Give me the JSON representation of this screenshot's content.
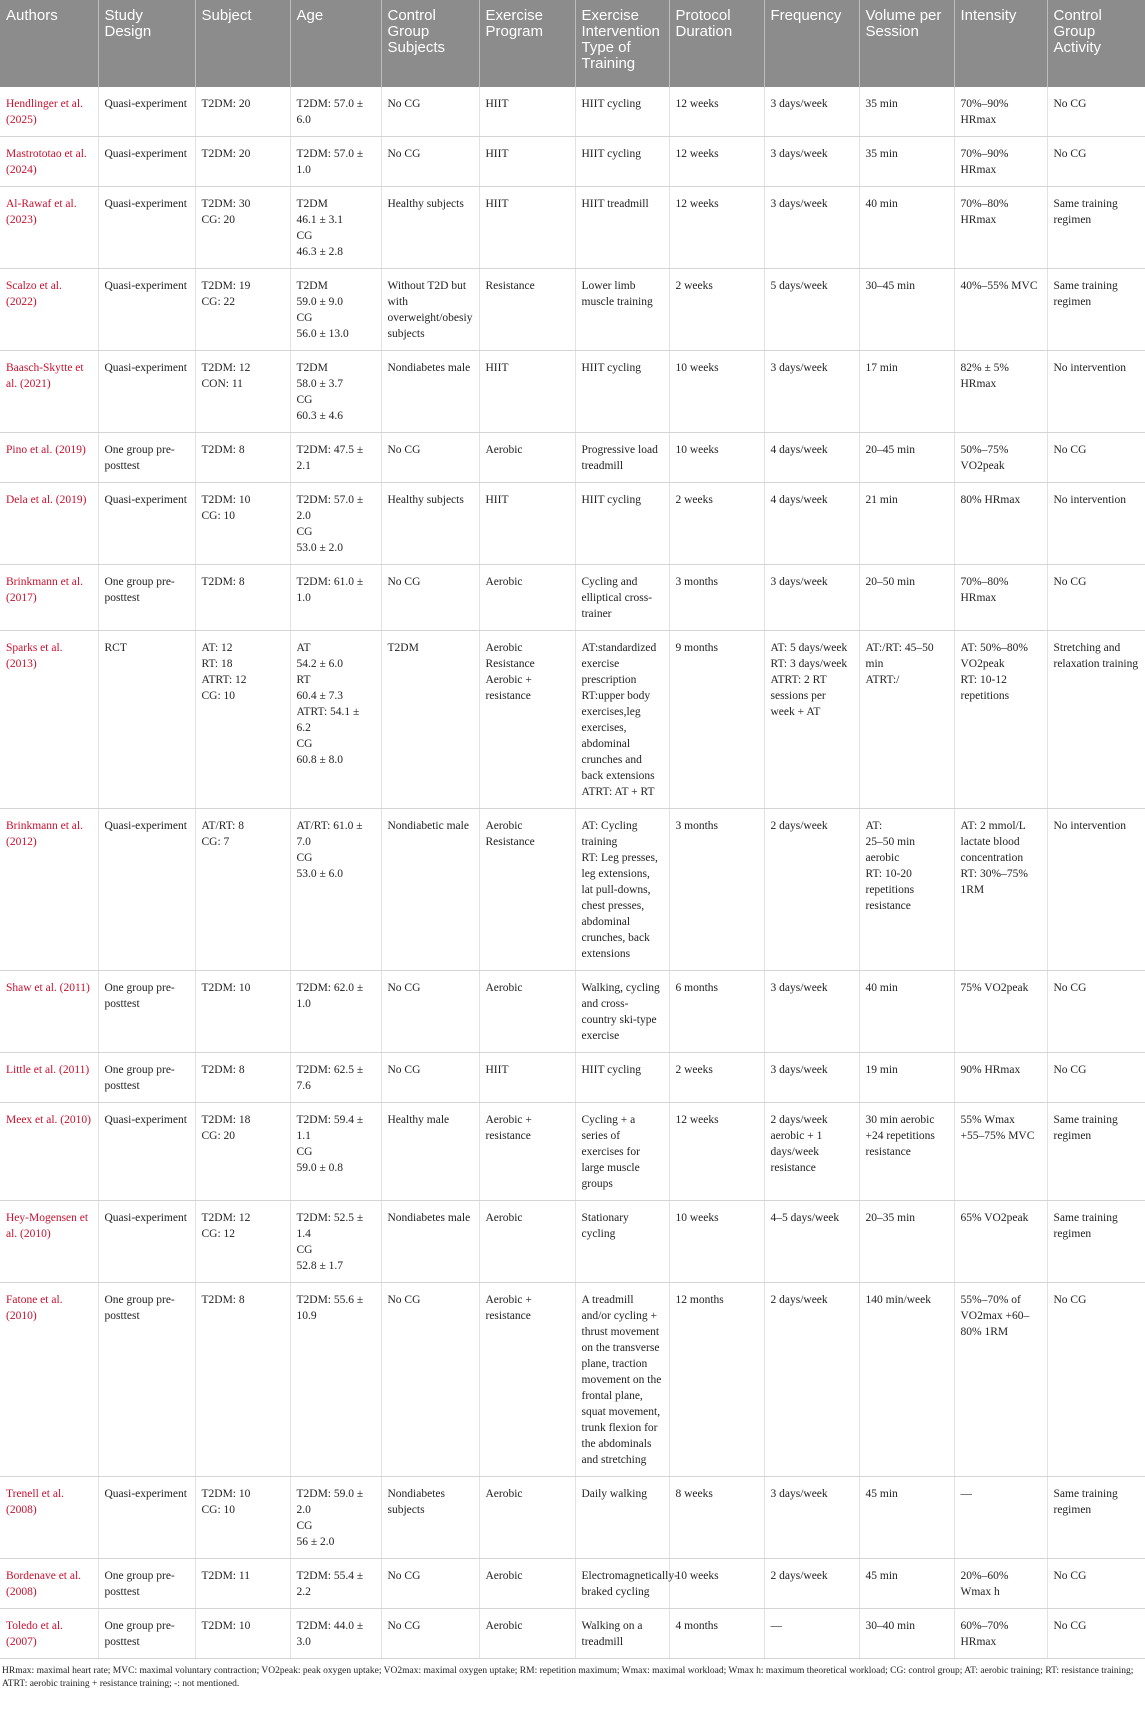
{
  "table": {
    "headers": [
      "Authors",
      "Study Design",
      "Subject",
      "Age",
      "Control Group Subjects",
      "Exercise Program",
      "Exercise Intervention Type of Training",
      "Protocol Duration",
      "Frequency",
      "Volume per Session",
      "Intensity",
      "Control Group Activity"
    ],
    "rows": [
      [
        "Hendlinger et al. (2025)",
        "Quasi-experiment",
        "T2DM: 20",
        "T2DM: 57.0 ± 6.0",
        "No CG",
        "HIIT",
        "HIIT cycling",
        "12 weeks",
        "3 days/week",
        "35 min",
        "70%–90% HRmax",
        "No CG"
      ],
      [
        "Mastrototao et al. (2024)",
        "Quasi-experiment",
        "T2DM: 20",
        "T2DM: 57.0 ± 1.0",
        "No CG",
        "HIIT",
        "HIIT cycling",
        "12 weeks",
        "3 days/week",
        "35 min",
        "70%–90% HRmax",
        "No CG"
      ],
      [
        "Al-Rawaf et al. (2023)",
        "Quasi-experiment",
        "T2DM: 30\nCG: 20",
        "T2DM\n46.1 ± 3.1\nCG\n46.3 ± 2.8",
        "Healthy subjects",
        "HIIT",
        "HIIT treadmill",
        "12 weeks",
        "3 days/week",
        "40 min",
        "70%–80% HRmax",
        "Same training regimen"
      ],
      [
        "Scalzo et al. (2022)",
        "Quasi-experiment",
        "T2DM: 19\nCG: 22",
        "T2DM\n59.0 ± 9.0\nCG\n56.0 ± 13.0",
        "Without T2D but with overweight/obesiy subjects",
        "Resistance",
        "Lower limb muscle training",
        "2 weeks",
        "5 days/week",
        "30–45 min",
        "40%–55% MVC",
        "Same training regimen"
      ],
      [
        "Baasch-Skytte et al. (2021)",
        "Quasi-experiment",
        "T2DM: 12\nCON: 11",
        "T2DM\n58.0 ± 3.7\nCG\n60.3 ± 4.6",
        "Nondiabetes male",
        "HIIT",
        "HIIT cycling",
        "10 weeks",
        "3 days/week",
        "17 min",
        "82% ± 5% HRmax",
        "No intervention"
      ],
      [
        "Pino et al. (2019)",
        "One group pre-posttest",
        "T2DM: 8",
        "T2DM: 47.5 ± 2.1",
        "No CG",
        "Aerobic",
        "Progressive load treadmill",
        "10 weeks",
        "4 days/week",
        "20–45 min",
        "50%–75% VO2peak",
        "No CG"
      ],
      [
        "Dela et al. (2019)",
        "Quasi-experiment",
        "T2DM: 10\nCG: 10",
        "T2DM: 57.0 ± 2.0\nCG\n53.0 ± 2.0",
        "Healthy subjects",
        "HIIT",
        "HIIT cycling",
        "2 weeks",
        "4 days/week",
        "21 min",
        "80% HRmax",
        "No intervention"
      ],
      [
        "Brinkmann et al. (2017)",
        "One group pre-posttest",
        "T2DM: 8",
        "T2DM: 61.0 ± 1.0",
        "No CG",
        "Aerobic",
        "Cycling and elliptical cross-trainer",
        "3 months",
        "3 days/week",
        "20–50 min",
        "70%–80% HRmax",
        "No CG"
      ],
      [
        "Sparks et al. (2013)",
        "RCT",
        "AT: 12\nRT: 18\nATRT: 12\nCG: 10",
        "AT\n54.2 ± 6.0\nRT\n60.4 ± 7.3\nATRT: 54.1 ± 6.2\nCG\n60.8 ± 8.0",
        "T2DM",
        "Aerobic\nResistance\nAerobic + resistance",
        "AT:standardized exercise prescription\nRT:upper body exercises,leg exercises, abdominal crunches and back extensions\nATRT: AT + RT",
        "9 months",
        "AT: 5 days/week\nRT: 3 days/week\nATRT: 2 RT sessions per week + AT",
        "AT:/RT: 45–50 min\nATRT:/",
        "AT: 50%–80% VO2peak\nRT: 10-12 repetitions",
        "Stretching and relaxation training"
      ],
      [
        "Brinkmann et al. (2012)",
        "Quasi-experiment",
        "AT/RT: 8\nCG: 7",
        "AT/RT: 61.0 ± 7.0\nCG\n53.0 ± 6.0",
        "Nondiabetic male",
        "Aerobic\nResistance",
        "AT: Cycling training\nRT: Leg presses, leg extensions, lat pull-downs, chest presses, abdominal crunches, back extensions",
        "3 months",
        "2 days/week",
        "AT:\n25–50 min aerobic\nRT: 10-20 repetitions resistance",
        "AT: 2 mmol/L lactate blood concentration\nRT: 30%–75% 1RM",
        "No intervention"
      ],
      [
        "Shaw et al. (2011)",
        "One group pre-posttest",
        "T2DM: 10",
        "T2DM: 62.0 ± 1.0",
        "No CG",
        "Aerobic",
        "Walking, cycling and cross-country ski-type exercise",
        "6 months",
        "3 days/week",
        "40 min",
        "75% VO2peak",
        "No CG"
      ],
      [
        "Little et al. (2011)",
        "One group pre-posttest",
        "T2DM: 8",
        "T2DM: 62.5 ± 7.6",
        "No CG",
        "HIIT",
        "HIIT cycling",
        "2 weeks",
        "3 days/week",
        "19 min",
        "90% HRmax",
        "No CG"
      ],
      [
        "Meex et al. (2010)",
        "Quasi-experiment",
        "T2DM: 18\nCG: 20",
        "T2DM: 59.4 ± 1.1\nCG\n59.0 ± 0.8",
        "Healthy male",
        "Aerobic + resistance",
        "Cycling + a series of exercises for large muscle groups",
        "12 weeks",
        "2 days/week aerobic + 1 days/week resistance",
        "30 min aerobic +24 repetitions resistance",
        "55% Wmax +55–75% MVC",
        "Same training regimen"
      ],
      [
        "Hey-Mogensen et al. (2010)",
        "Quasi-experiment",
        "T2DM: 12\nCG: 12",
        "T2DM: 52.5 ± 1.4\nCG\n52.8 ± 1.7",
        "Nondiabetes male",
        "Aerobic",
        "Stationary cycling",
        "10 weeks",
        "4–5 days/week",
        "20–35 min",
        "65% VO2peak",
        "Same training regimen"
      ],
      [
        "Fatone et al. (2010)",
        "One group pre-posttest",
        "T2DM: 8",
        "T2DM: 55.6 ± 10.9",
        "No CG",
        "Aerobic + resistance",
        "A treadmill and/or cycling + thrust movement on the transverse plane, traction movement on the frontal plane, squat movement, trunk flexion for the abdominals and stretching",
        "12 months",
        "2 days/week",
        "140 min/week",
        "55%–70% of VO2max +60–80% 1RM",
        "No CG"
      ],
      [
        "Trenell et al. (2008)",
        "Quasi-experiment",
        "T2DM: 10\nCG: 10",
        "T2DM: 59.0 ± 2.0\nCG\n56 ± 2.0",
        "Nondiabetes subjects",
        "Aerobic",
        "Daily walking",
        "8 weeks",
        "3 days/week",
        "45 min",
        "—",
        "Same training regimen"
      ],
      [
        "Bordenave et al. (2008)",
        "One group pre-posttest",
        "T2DM: 11",
        "T2DM: 55.4 ± 2.2",
        "No CG",
        "Aerobic",
        "Electromagnetically-braked cycling",
        "10 weeks",
        "2 days/week",
        "45 min",
        "20%–60% Wmax h",
        "No CG"
      ],
      [
        "Toledo et al. (2007)",
        "One group pre-posttest",
        "T2DM: 10",
        "T2DM: 44.0 ± 3.0",
        "No CG",
        "Aerobic",
        "Walking on a treadmill",
        "4 months",
        "—",
        "30–40 min",
        "60%–70% HRmax",
        "No CG"
      ]
    ],
    "footnote": "HRmax: maximal heart rate; MVC: maximal voluntary contraction; VO2peak: peak oxygen uptake; VO2max: maximal oxygen uptake; RM: repetition maximum; Wmax: maximal workload; Wmax h: maximum theoretical workload; CG: control group; AT: aerobic training; RT: resistance training; ATRT: aerobic training + resistance training; -: not mentioned."
  }
}
